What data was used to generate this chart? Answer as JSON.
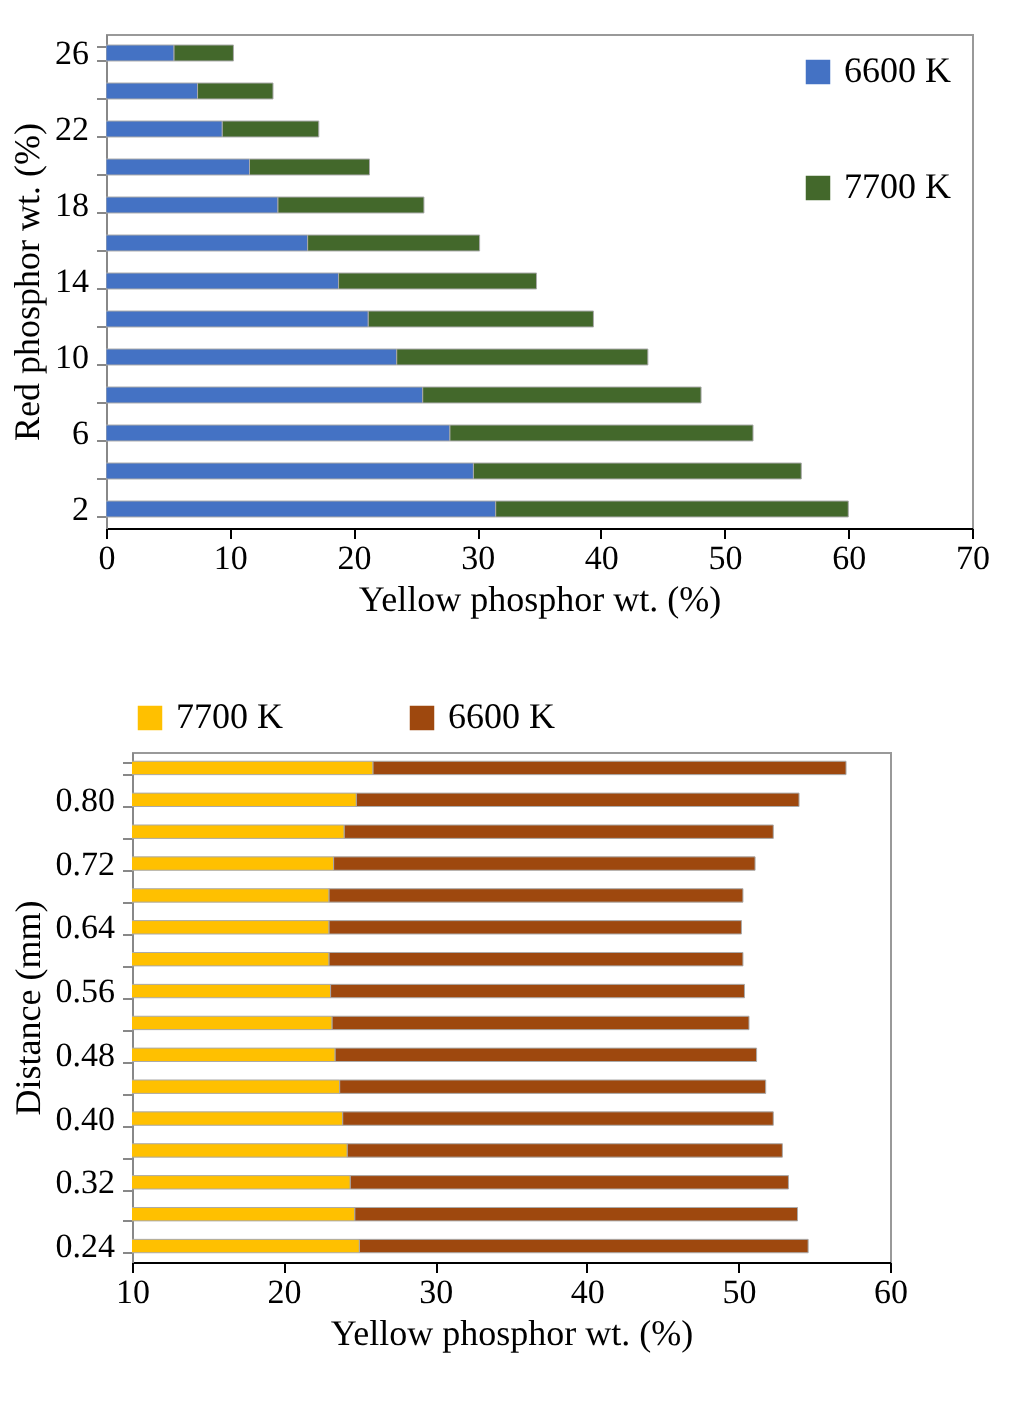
{
  "chart_data": [
    {
      "type": "bar",
      "orientation": "horizontal",
      "stacked": true,
      "xlabel": "Yellow phosphor wt. (%)",
      "ylabel": "Red phosphor wt. (%)",
      "categories": [
        "26",
        null,
        "22",
        null,
        "18",
        null,
        "14",
        null,
        "10",
        null,
        "6",
        null,
        "2"
      ],
      "series": [
        {
          "name": "6600 K",
          "color": "#4472c4",
          "values": [
            5.5,
            7.4,
            9.4,
            11.6,
            13.9,
            16.3,
            18.8,
            21.2,
            23.5,
            25.6,
            27.8,
            29.7,
            31.5
          ]
        },
        {
          "name": "7700 K",
          "color": "#43682b",
          "values": [
            4.8,
            6.1,
            7.8,
            9.7,
            11.8,
            13.9,
            16.0,
            18.2,
            20.3,
            22.5,
            24.5,
            26.5,
            28.5
          ]
        }
      ],
      "xlim": [
        0,
        70
      ],
      "xticks": [
        0,
        10,
        20,
        30,
        40,
        50,
        60,
        70
      ],
      "grid": false,
      "legend": "top right"
    },
    {
      "type": "bar",
      "orientation": "horizontal",
      "stacked": true,
      "xlabel": "Yellow phosphor wt. (%)",
      "ylabel": "Distance (mm)",
      "categories": [
        null,
        "0.80",
        null,
        "0.72",
        null,
        "0.64",
        null,
        "0.56",
        null,
        "0.48",
        null,
        "0.40",
        null,
        "0.32",
        null,
        "0.24"
      ],
      "series": [
        {
          "name": "7700 K",
          "color": "#ffc000",
          "values": [
            25.9,
            24.8,
            24.0,
            23.3,
            23.0,
            23.0,
            23.0,
            23.1,
            23.2,
            23.4,
            23.7,
            23.9,
            24.2,
            24.4,
            24.7,
            25.0
          ]
        },
        {
          "name": "6600 K",
          "color": "#9e480e",
          "values": [
            31.2,
            29.2,
            28.3,
            27.8,
            27.3,
            27.2,
            27.3,
            27.3,
            27.5,
            27.8,
            28.1,
            28.4,
            28.7,
            28.9,
            29.2,
            29.6
          ]
        }
      ],
      "xlim": [
        10,
        60
      ],
      "xticks": [
        10,
        20,
        30,
        40,
        50,
        60
      ],
      "grid": false,
      "legend": "top"
    }
  ]
}
